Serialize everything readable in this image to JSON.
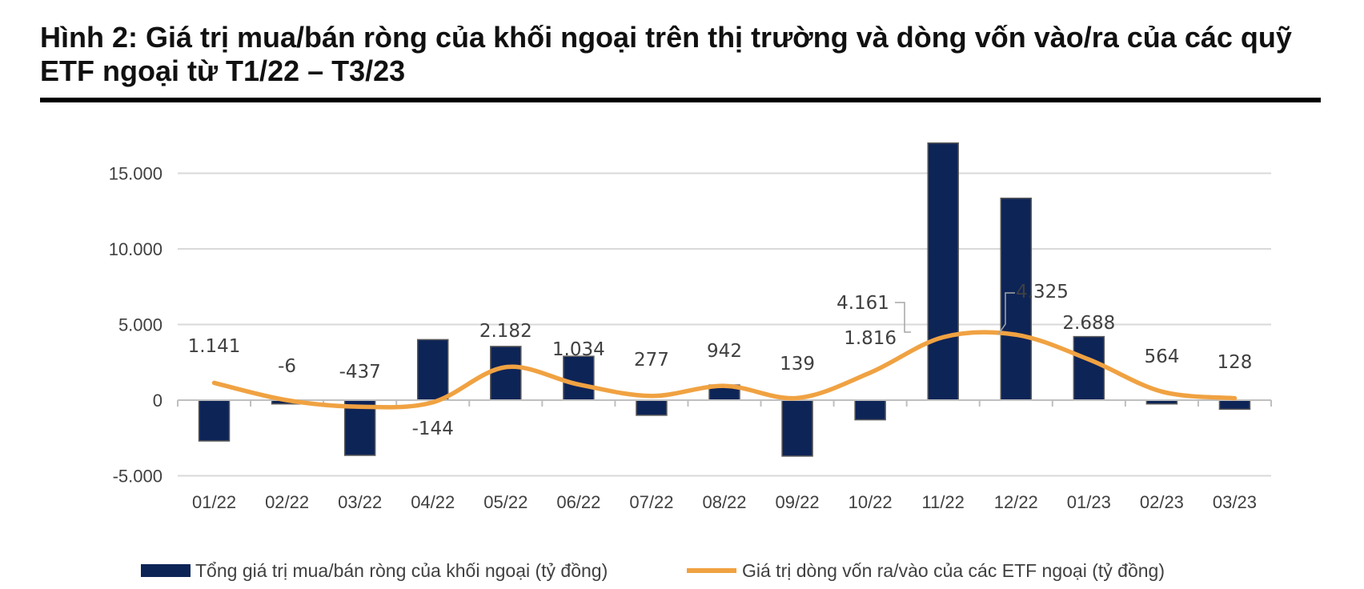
{
  "figure": {
    "title": "Hình 2: Giá trị mua/bán ròng của khối ngoại trên thị trường và dòng vốn vào/ra của các quỹ ETF ngoại từ T1/22 – T3/23"
  },
  "chart_data": {
    "type": "bar",
    "categories": [
      "01/22",
      "02/22",
      "03/22",
      "04/22",
      "05/22",
      "06/22",
      "07/22",
      "08/22",
      "09/22",
      "10/22",
      "11/22",
      "12/22",
      "01/23",
      "02/23",
      "03/23"
    ],
    "ylim": [
      -5000,
      17000
    ],
    "yticks": [
      -5000,
      0,
      5000,
      10000,
      15000
    ],
    "ytick_labels": [
      "-5.000",
      "0",
      "5.000",
      "10.000",
      "15.000"
    ],
    "grid": true,
    "legend_position": "bottom",
    "series": [
      {
        "name": "Tổng giá trị mua/bán ròng của khối ngoại (tỷ đồng)",
        "type": "bar",
        "color": "#0d2457",
        "values": [
          -2700,
          -250,
          -3650,
          4000,
          3550,
          2900,
          -1000,
          1000,
          -3700,
          -1300,
          17000,
          13350,
          4200,
          -250,
          -600
        ]
      },
      {
        "name": "Giá trị dòng vốn ra/vào của các ETF ngoại (tỷ đồng)",
        "type": "line",
        "color": "#f0a242",
        "values": [
          1141,
          -6,
          -437,
          -144,
          2182,
          1034,
          277,
          942,
          139,
          1816,
          4161,
          4325,
          2688,
          564,
          128
        ],
        "labels": [
          "1.141",
          "-6",
          "-437",
          "-144",
          "2.182",
          "1.034",
          "277",
          "942",
          "139",
          "1.816",
          "4.161",
          "4.325",
          "2.688",
          "564",
          "128"
        ]
      }
    ]
  }
}
